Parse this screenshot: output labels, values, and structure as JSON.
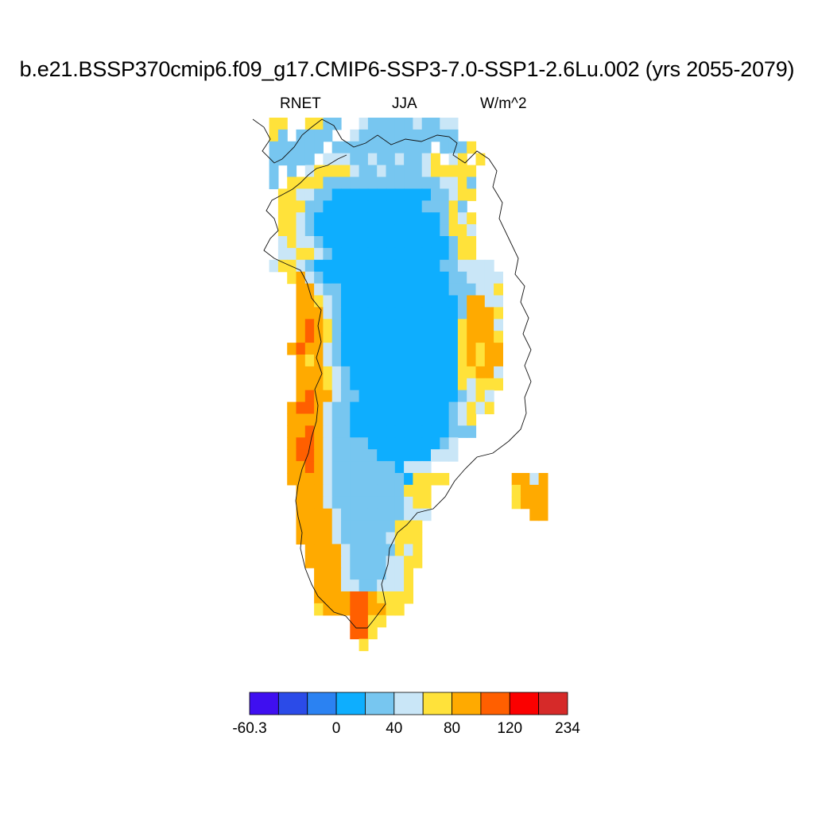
{
  "title": "b.e21.BSSP370cmip6.f09_g17.CMIP6-SSP3-7.0-SSP1-2.6Lu.002 (yrs 2055-2079)",
  "subtitle": {
    "left": "RNET",
    "center": "JJA",
    "right": "W/m^2"
  },
  "colorbar": {
    "colors": [
      "#3f0ff0",
      "#2b4be8",
      "#2b82f2",
      "#0eaefe",
      "#77c6f0",
      "#c9e6f7",
      "#ffe23a",
      "#ffaa00",
      "#ff5f00",
      "#fb0000",
      "#d62a29"
    ],
    "labels": [
      {
        "text": "-60.3",
        "edge": 0
      },
      {
        "text": "0",
        "edge": 3
      },
      {
        "text": "40",
        "edge": 5
      },
      {
        "text": "80",
        "edge": 7
      },
      {
        "text": "120",
        "edge": 9
      },
      {
        "text": "234",
        "edge": 11
      }
    ]
  },
  "legend": {
    "0": "#0eaefe",
    "1": "#77c6f0",
    "2": "#c9e6f7",
    "3": "#ffe23a",
    "4": "#ffaa00",
    "5": "#ff5f00",
    "6": "#fb0000"
  },
  "map_grid": [
    "..33..3311..21111121122...........",
    "..31.1111..211111111111...........",
    "..111111.11111111111.1113..........",
    "..11111.2221121121123.23.3..........",
    "..1.1.2333321121111233333..........",
    "..1.333311111111111112231..........",
    "...3322110000000000011233..........",
    "...333110000000000011131..........",
    "...3321000000000000001323...........",
    "...3321000000000000001332...........",
    "...2322100000000000000133...........",
    "...2233210000000000000133...........",
    "..2332100000000000000112222........",
    "....342100000000000000112222........",
    ".....44211000000000000111223........",
    ".....44321000000000000014422........",
    ".....44421000000000000014443........",
    ".....45431000000000000034442........",
    ".....45431000000000000034443........",
    "....454421000000000000034344........",
    ".....43421000000000000034344........",
    ".....44432100000000000033442........",
    ".....44432100000000000032333........",
    ".....4544211000000000001232.........",
    "....45542110000000000012323.........",
    "....444421100000000000123...........",
    "....445421100000000000111...........",
    "....4554211110000000012...........",
    "....4554211111000000222...........",
    "....4454211111110222..............",
    "....444421111111103333.......4424",
    ".....444211111111333.........3444",
    ".....444211111111233.........3444",
    ".....444421111111222...........44",
    ".....44442111111333..............",
    ".....44442111112333..............",
    "......4444211111323..............",
    "......4444211112233..............",
    ".......44421111223...............",
    ".......44422112223...............",
    ".......44445543333...............",
    ".......3444554433................",
    "...........5533..................",
    "...........553...................",
    "............3...................."
  ],
  "coastline": [
    [
      318,
      150
    ],
    [
      332,
      160
    ],
    [
      340,
      175
    ],
    [
      330,
      190
    ],
    [
      345,
      205
    ],
    [
      355,
      200
    ],
    [
      370,
      185
    ],
    [
      380,
      170
    ],
    [
      392,
      160
    ],
    [
      405,
      150
    ],
    [
      420,
      158
    ],
    [
      430,
      175
    ],
    [
      445,
      185
    ],
    [
      460,
      180
    ],
    [
      475,
      170
    ],
    [
      492,
      182
    ],
    [
      510,
      175
    ],
    [
      530,
      178
    ],
    [
      550,
      170
    ],
    [
      565,
      172
    ],
    [
      575,
      180
    ],
    [
      570,
      195
    ],
    [
      585,
      205
    ],
    [
      600,
      190
    ],
    [
      615,
      200
    ],
    [
      625,
      215
    ],
    [
      620,
      235
    ],
    [
      632,
      255
    ],
    [
      628,
      275
    ],
    [
      640,
      300
    ],
    [
      652,
      325
    ],
    [
      648,
      345
    ],
    [
      660,
      360
    ],
    [
      655,
      380
    ],
    [
      665,
      400
    ],
    [
      658,
      420
    ],
    [
      668,
      440
    ],
    [
      660,
      460
    ],
    [
      668,
      480
    ],
    [
      660,
      500
    ],
    [
      662,
      520
    ],
    [
      655,
      540
    ],
    [
      640,
      555
    ],
    [
      620,
      570
    ],
    [
      600,
      575
    ],
    [
      585,
      590
    ],
    [
      572,
      605
    ],
    [
      560,
      625
    ],
    [
      545,
      640
    ],
    [
      525,
      645
    ],
    [
      512,
      660
    ],
    [
      500,
      670
    ],
    [
      490,
      690
    ],
    [
      488,
      710
    ],
    [
      480,
      735
    ],
    [
      485,
      760
    ],
    [
      470,
      780
    ],
    [
      462,
      790
    ],
    [
      448,
      790
    ],
    [
      435,
      775
    ],
    [
      420,
      770
    ],
    [
      410,
      760
    ],
    [
      400,
      750
    ],
    [
      392,
      735
    ],
    [
      384,
      715
    ],
    [
      378,
      690
    ],
    [
      380,
      670
    ],
    [
      375,
      650
    ],
    [
      372,
      630
    ],
    [
      375,
      610
    ],
    [
      380,
      590
    ],
    [
      388,
      570
    ],
    [
      392,
      550
    ],
    [
      398,
      530
    ],
    [
      400,
      510
    ],
    [
      396,
      490
    ],
    [
      405,
      470
    ],
    [
      398,
      450
    ],
    [
      404,
      430
    ],
    [
      400,
      410
    ],
    [
      404,
      390
    ],
    [
      392,
      375
    ],
    [
      386,
      355
    ],
    [
      378,
      340
    ],
    [
      360,
      332
    ],
    [
      345,
      325
    ],
    [
      332,
      315
    ],
    [
      340,
      300
    ],
    [
      350,
      290
    ],
    [
      345,
      275
    ],
    [
      335,
      265
    ],
    [
      342,
      252
    ],
    [
      355,
      245
    ],
    [
      368,
      238
    ],
    [
      378,
      230
    ],
    [
      388,
      220
    ],
    [
      398,
      212
    ],
    [
      412,
      208
    ],
    [
      425,
      200
    ],
    [
      436,
      195
    ]
  ]
}
